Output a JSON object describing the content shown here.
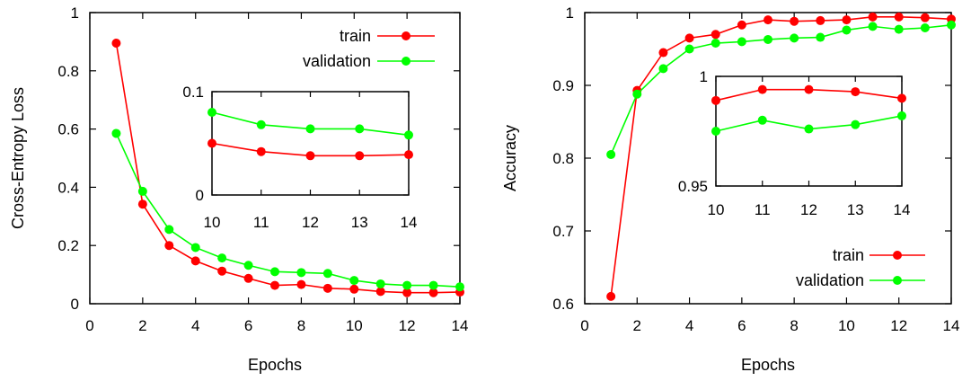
{
  "chart_data": [
    {
      "type": "line",
      "xlabel": "Epochs",
      "ylabel": "Cross-Entropy Loss",
      "xlim": [
        0,
        14
      ],
      "ylim": [
        0,
        1
      ],
      "xticks": [
        "0",
        "2",
        "4",
        "6",
        "8",
        "10",
        "12",
        "14"
      ],
      "yticks": [
        "0",
        "0.2",
        "0.4",
        "0.6",
        "0.8",
        "1"
      ],
      "legend": "top-right",
      "x": [
        1,
        2,
        3,
        4,
        5,
        6,
        7,
        8,
        9,
        10,
        11,
        12,
        13,
        14
      ],
      "series": [
        {
          "name": "train",
          "color": "#ff0000",
          "values": [
            0.895,
            0.342,
            0.2,
            0.147,
            0.112,
            0.087,
            0.063,
            0.066,
            0.053,
            0.05,
            0.042,
            0.038,
            0.038,
            0.04
          ]
        },
        {
          "name": "validation",
          "color": "#00ff00",
          "values": [
            0.585,
            0.386,
            0.255,
            0.193,
            0.157,
            0.132,
            0.11,
            0.107,
            0.104,
            0.08,
            0.068,
            0.063,
            0.063,
            0.058
          ]
        }
      ],
      "inset": {
        "xlim": [
          10,
          14
        ],
        "ylim": [
          0,
          0.1
        ],
        "xticks": [
          "10",
          "11",
          "12",
          "13",
          "14"
        ],
        "yticks": [
          "0",
          "0.1"
        ],
        "x": [
          10,
          11,
          12,
          13,
          14
        ],
        "series": [
          {
            "name": "train",
            "values": [
              0.05,
              0.042,
              0.038,
              0.038,
              0.039
            ]
          },
          {
            "name": "validation",
            "values": [
              0.08,
              0.068,
              0.064,
              0.064,
              0.058
            ]
          }
        ]
      }
    },
    {
      "type": "line",
      "xlabel": "Epochs",
      "ylabel": "Accuracy",
      "xlim": [
        0,
        14
      ],
      "ylim": [
        0.6,
        1
      ],
      "xticks": [
        "0",
        "2",
        "4",
        "6",
        "8",
        "10",
        "12",
        "14"
      ],
      "yticks": [
        "0.6",
        "0.7",
        "0.8",
        "0.9",
        "1"
      ],
      "legend": "bottom-right",
      "x": [
        1,
        2,
        3,
        4,
        5,
        6,
        7,
        8,
        9,
        10,
        11,
        12,
        13,
        14
      ],
      "series": [
        {
          "name": "train",
          "color": "#ff0000",
          "values": [
            0.61,
            0.893,
            0.945,
            0.965,
            0.97,
            0.983,
            0.99,
            0.988,
            0.989,
            0.99,
            0.994,
            0.994,
            0.993,
            0.991
          ]
        },
        {
          "name": "validation",
          "color": "#00ff00",
          "values": [
            0.805,
            0.888,
            0.923,
            0.95,
            0.958,
            0.96,
            0.963,
            0.965,
            0.966,
            0.976,
            0.981,
            0.977,
            0.979,
            0.983
          ]
        }
      ],
      "inset": {
        "xlim": [
          10,
          14
        ],
        "ylim": [
          0.95,
          1
        ],
        "xticks": [
          "10",
          "11",
          "12",
          "13",
          "14"
        ],
        "yticks": [
          "0.95",
          "1"
        ],
        "x": [
          10,
          11,
          12,
          13,
          14
        ],
        "series": [
          {
            "name": "train",
            "values": [
              0.989,
              0.994,
              0.994,
              0.993,
              0.99
            ]
          },
          {
            "name": "validation",
            "values": [
              0.975,
              0.98,
              0.976,
              0.978,
              0.982
            ]
          }
        ]
      }
    }
  ]
}
